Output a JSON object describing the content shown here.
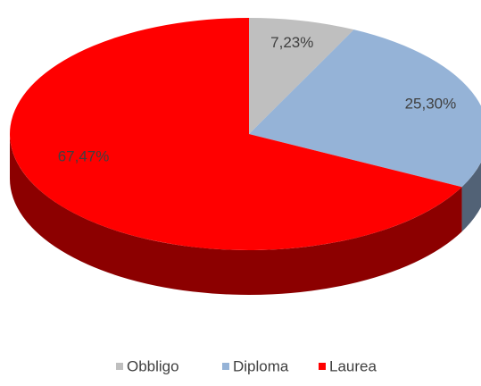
{
  "chart_data": {
    "type": "pie",
    "categories": [
      "Obbligo",
      "Diploma",
      "Laurea"
    ],
    "values": [
      7.23,
      25.3,
      67.47
    ],
    "value_labels": [
      "7,23%",
      "25,30%",
      "67,47%"
    ],
    "colors": [
      "#bfbfbf",
      "#95b3d7",
      "#ff0000"
    ],
    "legend": "bottom"
  }
}
